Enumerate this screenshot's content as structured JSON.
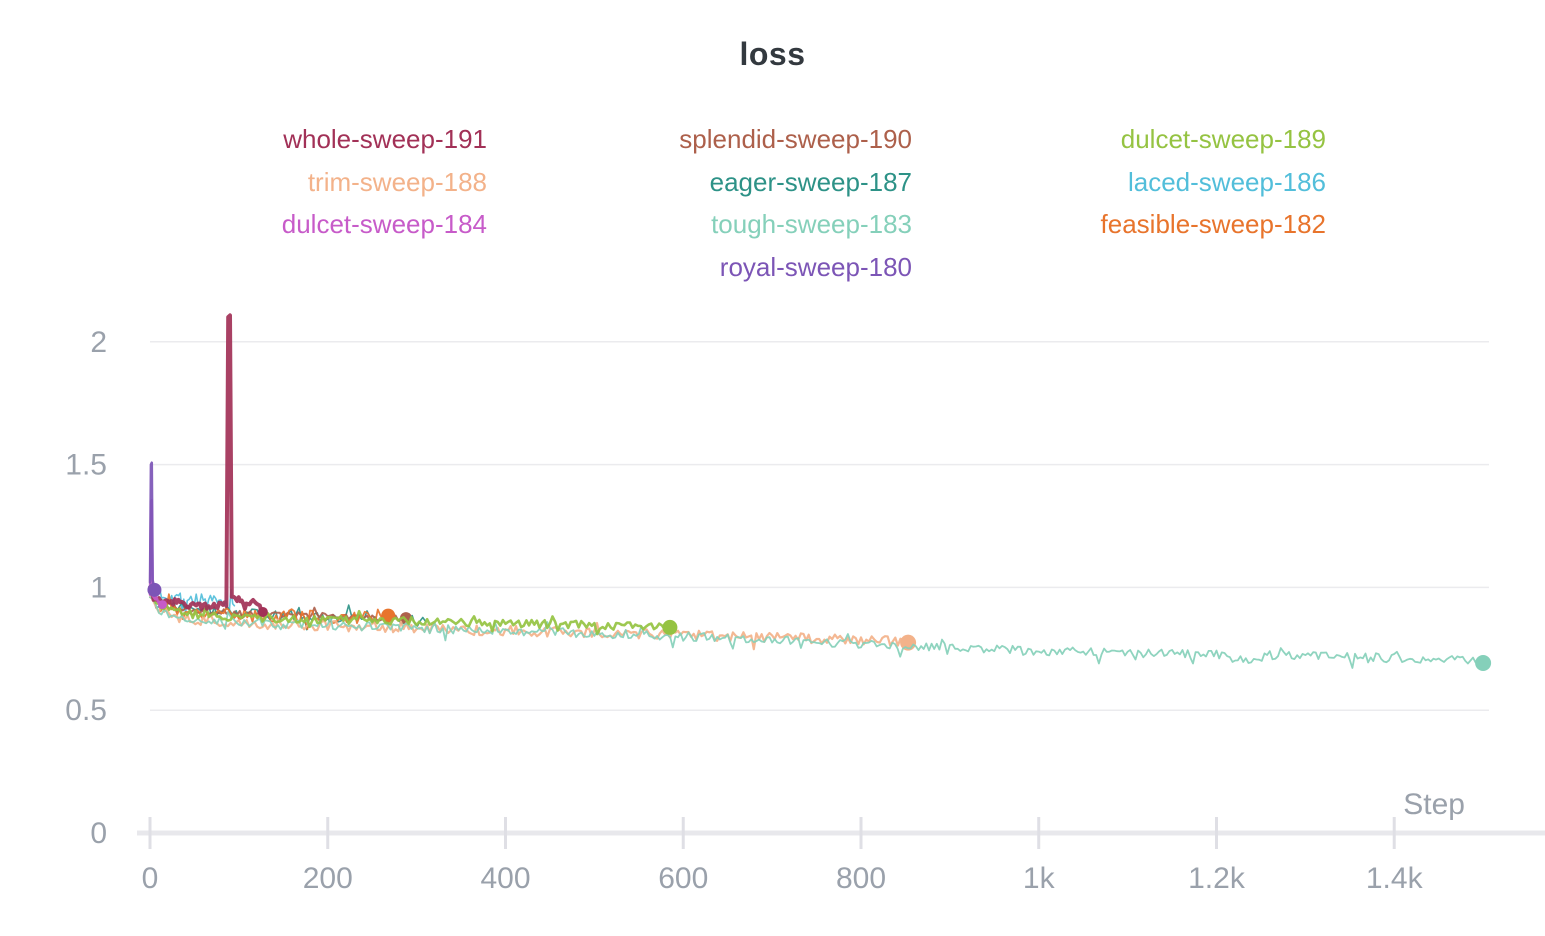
{
  "chart_data": {
    "type": "line",
    "title": "loss",
    "legend_position": "top",
    "grid": true,
    "colors": {
      "title": "#33393f",
      "axis_text": "#9aa1ab",
      "grid_line": "#ebebee",
      "axis_line": "#e8e8ec",
      "tick_mark": "#dfdfe5"
    },
    "x_axis": {
      "label": "Step",
      "min": 0,
      "max": 1510,
      "ticks": [
        {
          "v": 0,
          "label": "0"
        },
        {
          "v": 200,
          "label": "200"
        },
        {
          "v": 400,
          "label": "400"
        },
        {
          "v": 600,
          "label": "600"
        },
        {
          "v": 800,
          "label": "800"
        },
        {
          "v": 1000,
          "label": "1k"
        },
        {
          "v": 1200,
          "label": "1.2k"
        },
        {
          "v": 1400,
          "label": "1.4k"
        }
      ]
    },
    "y_axis": {
      "min": 0,
      "max": 2.17,
      "ticks": [
        {
          "v": 0,
          "label": "0"
        },
        {
          "v": 0.5,
          "label": "0.5"
        },
        {
          "v": 1,
          "label": "1"
        },
        {
          "v": 1.5,
          "label": "1.5"
        },
        {
          "v": 2,
          "label": "2"
        }
      ]
    },
    "legend": {
      "columns": 3,
      "items": [
        {
          "label": "whole-sweep-191",
          "row": 1,
          "col": 1
        },
        {
          "label": "splendid-sweep-190",
          "row": 1,
          "col": 2
        },
        {
          "label": "dulcet-sweep-189",
          "row": 1,
          "col": 3
        },
        {
          "label": "trim-sweep-188",
          "row": 2,
          "col": 1
        },
        {
          "label": "eager-sweep-187",
          "row": 2,
          "col": 2
        },
        {
          "label": "laced-sweep-186",
          "row": 2,
          "col": 3
        },
        {
          "label": "dulcet-sweep-184",
          "row": 3,
          "col": 1
        },
        {
          "label": "tough-sweep-183",
          "row": 3,
          "col": 2
        },
        {
          "label": "feasible-sweep-182",
          "row": 3,
          "col": 3
        },
        {
          "label": "royal-sweep-180",
          "row": 4,
          "col": 2
        }
      ]
    },
    "series": [
      {
        "name": "laced-sweep-186",
        "color": "#52bedA",
        "width": 1.6,
        "noise": 0.028,
        "inc": 2,
        "end_dot": false,
        "trend": [
          [
            0,
            1.05
          ],
          [
            5,
            0.99
          ],
          [
            15,
            0.97
          ],
          [
            30,
            0.96
          ],
          [
            50,
            0.95
          ],
          [
            70,
            0.94
          ],
          [
            95,
            0.925
          ]
        ]
      },
      {
        "name": "eager-sweep-187",
        "color": "#2d9287",
        "width": 1.6,
        "noise": 0.022,
        "inc": 3,
        "end_dot": false,
        "trend": [
          [
            0,
            1.0
          ],
          [
            10,
            0.94
          ],
          [
            30,
            0.92
          ],
          [
            60,
            0.905
          ],
          [
            100,
            0.895
          ],
          [
            150,
            0.885
          ],
          [
            200,
            0.88
          ],
          [
            250,
            0.87
          ],
          [
            310,
            0.862
          ]
        ]
      },
      {
        "name": "splendid-sweep-190",
        "color": "#ad604b",
        "width": 2.0,
        "noise": 0.012,
        "inc": 3,
        "end_dot": true,
        "end_dot_r": 6,
        "trend": [
          [
            0,
            0.99
          ],
          [
            15,
            0.93
          ],
          [
            40,
            0.91
          ],
          [
            80,
            0.9
          ],
          [
            140,
            0.89
          ],
          [
            200,
            0.885
          ],
          [
            250,
            0.878
          ],
          [
            288,
            0.875
          ]
        ]
      },
      {
        "name": "feasible-sweep-182",
        "color": "#e8742c",
        "width": 1.8,
        "noise": 0.028,
        "inc": 3,
        "end_dot": true,
        "end_dot_r": 7,
        "trend": [
          [
            0,
            0.96
          ],
          [
            15,
            0.91
          ],
          [
            40,
            0.895
          ],
          [
            80,
            0.89
          ],
          [
            130,
            0.885
          ],
          [
            180,
            0.882
          ],
          [
            230,
            0.88
          ],
          [
            268,
            0.885
          ]
        ]
      },
      {
        "name": "trim-sweep-188",
        "color": "#f3b28a",
        "width": 2.2,
        "noise": 0.021,
        "inc": 3,
        "end_dot": true,
        "end_dot_r": 8,
        "trend": [
          [
            0,
            0.97
          ],
          [
            10,
            0.91
          ],
          [
            30,
            0.88
          ],
          [
            60,
            0.865
          ],
          [
            100,
            0.855
          ],
          [
            150,
            0.848
          ],
          [
            200,
            0.843
          ],
          [
            250,
            0.838
          ],
          [
            300,
            0.833
          ],
          [
            350,
            0.828
          ],
          [
            400,
            0.824
          ],
          [
            450,
            0.82
          ],
          [
            500,
            0.815
          ],
          [
            550,
            0.81
          ],
          [
            600,
            0.804
          ],
          [
            650,
            0.8
          ],
          [
            700,
            0.795
          ],
          [
            750,
            0.79
          ],
          [
            800,
            0.783
          ],
          [
            830,
            0.78
          ],
          [
            853,
            0.775
          ]
        ]
      },
      {
        "name": "tough-sweep-183",
        "color": "#85d0ba",
        "width": 1.8,
        "noise": 0.018,
        "inc": 3,
        "end_dot": true,
        "end_dot_r": 8,
        "trend": [
          [
            0,
            0.96
          ],
          [
            10,
            0.9
          ],
          [
            30,
            0.88
          ],
          [
            60,
            0.87
          ],
          [
            100,
            0.86
          ],
          [
            150,
            0.852
          ],
          [
            200,
            0.845
          ],
          [
            250,
            0.84
          ],
          [
            300,
            0.835
          ],
          [
            350,
            0.828
          ],
          [
            400,
            0.822
          ],
          [
            450,
            0.818
          ],
          [
            500,
            0.813
          ],
          [
            550,
            0.808
          ],
          [
            600,
            0.8
          ],
          [
            650,
            0.792
          ],
          [
            700,
            0.785
          ],
          [
            750,
            0.778
          ],
          [
            800,
            0.77
          ],
          [
            850,
            0.762
          ],
          [
            900,
            0.755
          ],
          [
            950,
            0.75
          ],
          [
            1000,
            0.742
          ],
          [
            1050,
            0.737
          ],
          [
            1100,
            0.732
          ],
          [
            1150,
            0.73
          ],
          [
            1200,
            0.728
          ],
          [
            1230,
            0.7
          ],
          [
            1260,
            0.725
          ],
          [
            1300,
            0.722
          ],
          [
            1350,
            0.718
          ],
          [
            1400,
            0.712
          ],
          [
            1450,
            0.708
          ],
          [
            1480,
            0.7
          ],
          [
            1500,
            0.692
          ]
        ]
      },
      {
        "name": "dulcet-sweep-189",
        "color": "#95c342",
        "width": 2.6,
        "noise": 0.016,
        "inc": 3,
        "end_dot": true,
        "end_dot_r": 7.5,
        "trend": [
          [
            0,
            0.99
          ],
          [
            10,
            0.93
          ],
          [
            30,
            0.9
          ],
          [
            60,
            0.885
          ],
          [
            100,
            0.878
          ],
          [
            150,
            0.872
          ],
          [
            200,
            0.868
          ],
          [
            250,
            0.866
          ],
          [
            300,
            0.862
          ],
          [
            350,
            0.858
          ],
          [
            400,
            0.853
          ],
          [
            450,
            0.85
          ],
          [
            500,
            0.846
          ],
          [
            540,
            0.842
          ],
          [
            585,
            0.837
          ]
        ]
      },
      {
        "name": "whole-sweep-191",
        "color": "#a23157",
        "width": 4.0,
        "noise": 0.012,
        "inc": 2,
        "end_dot": true,
        "end_dot_r": 5,
        "trend": [
          [
            0,
            1.0
          ],
          [
            4,
            0.96
          ],
          [
            10,
            0.945
          ],
          [
            20,
            0.935
          ],
          [
            30,
            0.945
          ],
          [
            40,
            0.925
          ],
          [
            50,
            0.935
          ],
          [
            60,
            0.92
          ],
          [
            70,
            0.93
          ],
          [
            80,
            0.925
          ],
          [
            86,
            0.93
          ],
          [
            88,
            2.1
          ],
          [
            90,
            2.1
          ],
          [
            92,
            0.95
          ],
          [
            98,
            0.95
          ],
          [
            105,
            0.945
          ],
          [
            112,
            0.94
          ],
          [
            120,
            0.935
          ],
          [
            127,
            0.9
          ]
        ]
      },
      {
        "name": "dulcet-sweep-184",
        "color": "#c75bc9",
        "width": 2.5,
        "noise": 0.01,
        "inc": 1,
        "end_dot": true,
        "end_dot_r": 4.5,
        "trend": [
          [
            0,
            0.97
          ],
          [
            1,
            1.35
          ],
          [
            2,
            1.35
          ],
          [
            3,
            0.97
          ],
          [
            10,
            0.94
          ],
          [
            14,
            0.93
          ]
        ]
      },
      {
        "name": "royal-sweep-180",
        "color": "#7c55b6",
        "width": 2.5,
        "noise": 0.008,
        "inc": 1,
        "end_dot": true,
        "end_dot_r": 7,
        "trend": [
          [
            0,
            1.02
          ],
          [
            1,
            1.5
          ],
          [
            2,
            1.5
          ],
          [
            3,
            1.02
          ],
          [
            5,
            0.99
          ]
        ]
      }
    ]
  }
}
